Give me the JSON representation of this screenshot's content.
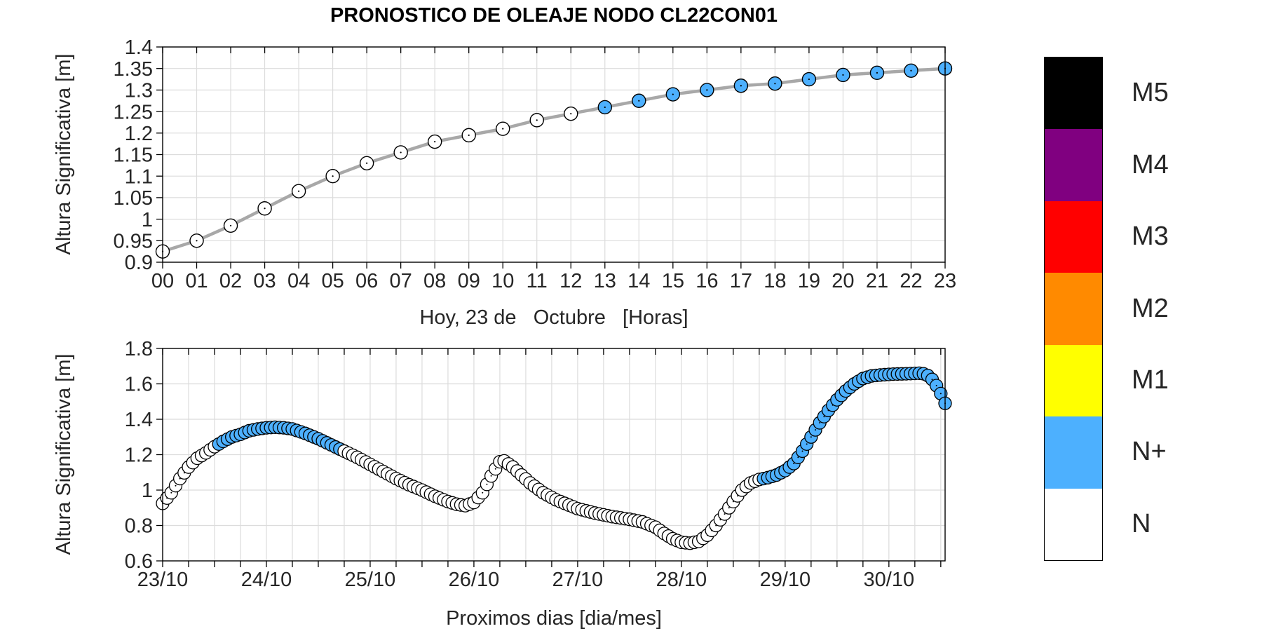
{
  "title": "PRONOSTICO DE OLEAJE NODO CL22CON01",
  "colors": {
    "n_plus_blue": "#4DB0FE",
    "n_white": "#FFFFFF",
    "marker_edge": "#000000",
    "series_line_gray": "#A8A8A8",
    "grid": "#DCDCDC",
    "axis_frame": "#000000",
    "tick_text": "#262626",
    "m5_black": "#000000",
    "m4_purple": "#800080",
    "m3_red": "#FF0000",
    "m2_orange": "#FF8A00",
    "m1_yellow": "#FFFF00"
  },
  "legend": {
    "items": [
      {
        "label": "M5",
        "color": "#000000"
      },
      {
        "label": "M4",
        "color": "#800080"
      },
      {
        "label": "M3",
        "color": "#FF0000"
      },
      {
        "label": "M2",
        "color": "#FF8A00"
      },
      {
        "label": "M1",
        "color": "#FFFF00"
      },
      {
        "label": "N+",
        "color": "#4DB0FE"
      },
      {
        "label": "N",
        "color": "#FFFFFF"
      }
    ]
  },
  "chart_data": [
    {
      "type": "line",
      "id": "today-hourly",
      "title": "PRONOSTICO DE OLEAJE NODO CL22CON01",
      "xlabel": "Hoy, 23 de   Octubre   [Horas]",
      "ylabel": "Altura Significativa [m]",
      "x_tick_labels": [
        "00",
        "01",
        "02",
        "03",
        "04",
        "05",
        "06",
        "07",
        "08",
        "09",
        "10",
        "11",
        "12",
        "13",
        "14",
        "15",
        "16",
        "17",
        "18",
        "19",
        "20",
        "21",
        "22",
        "23"
      ],
      "values": [
        0.925,
        0.95,
        0.985,
        1.025,
        1.065,
        1.1,
        1.13,
        1.155,
        1.18,
        1.195,
        1.21,
        1.23,
        1.245,
        1.26,
        1.275,
        1.29,
        1.3,
        1.31,
        1.315,
        1.325,
        1.335,
        1.34,
        1.345,
        1.35
      ],
      "point_levels": [
        "N",
        "N",
        "N",
        "N",
        "N",
        "N",
        "N",
        "N",
        "N",
        "N",
        "N",
        "N",
        "N",
        "N+",
        "N+",
        "N+",
        "N+",
        "N+",
        "N+",
        "N+",
        "N+",
        "N+",
        "N+",
        "N+"
      ],
      "blue_from_index": 13,
      "ylim": [
        0.9,
        1.4
      ],
      "ytick_step": 0.05,
      "y_tick_labels": [
        "0.9",
        "0.95",
        "1",
        "1.05",
        "1.1",
        "1.15",
        "1.2",
        "1.25",
        "1.3",
        "1.35",
        "1.4"
      ],
      "grid": true,
      "legend_position": "right-of-plot"
    },
    {
      "type": "scatter",
      "id": "coming-days",
      "xlabel": "Proximos dias [dia/mes]",
      "ylabel": "Altura Significativa [m]",
      "x_tick_labels": [
        "23/10",
        "24/10",
        "25/10",
        "26/10",
        "27/10",
        "28/10",
        "29/10",
        "30/10"
      ],
      "hours_per_day": 24,
      "t_start_hours": 0,
      "t_end_hours": 181,
      "minor_tick_hours": 6,
      "keypoints_hour_value": [
        [
          0,
          0.925
        ],
        [
          2,
          0.985
        ],
        [
          4,
          1.065
        ],
        [
          6,
          1.13
        ],
        [
          8,
          1.18
        ],
        [
          10,
          1.21
        ],
        [
          12,
          1.245
        ],
        [
          14,
          1.275
        ],
        [
          16,
          1.3
        ],
        [
          18,
          1.315
        ],
        [
          20,
          1.335
        ],
        [
          22,
          1.345
        ],
        [
          24,
          1.352
        ],
        [
          26,
          1.355
        ],
        [
          28,
          1.352
        ],
        [
          30,
          1.345
        ],
        [
          33,
          1.32
        ],
        [
          36,
          1.29
        ],
        [
          39,
          1.255
        ],
        [
          42,
          1.22
        ],
        [
          45,
          1.185
        ],
        [
          48,
          1.145
        ],
        [
          51,
          1.105
        ],
        [
          54,
          1.065
        ],
        [
          57,
          1.03
        ],
        [
          60,
          1.0
        ],
        [
          63,
          0.965
        ],
        [
          66,
          0.935
        ],
        [
          68,
          0.92
        ],
        [
          70,
          0.912
        ],
        [
          72,
          0.93
        ],
        [
          74,
          0.985
        ],
        [
          76,
          1.08
        ],
        [
          78,
          1.16
        ],
        [
          79,
          1.165
        ],
        [
          81,
          1.13
        ],
        [
          83,
          1.085
        ],
        [
          85,
          1.04
        ],
        [
          88,
          0.985
        ],
        [
          91,
          0.945
        ],
        [
          94,
          0.915
        ],
        [
          96,
          0.895
        ],
        [
          100,
          0.87
        ],
        [
          104,
          0.85
        ],
        [
          108,
          0.835
        ],
        [
          111,
          0.82
        ],
        [
          114,
          0.79
        ],
        [
          116,
          0.755
        ],
        [
          118,
          0.725
        ],
        [
          120,
          0.705
        ],
        [
          122,
          0.7
        ],
        [
          124,
          0.71
        ],
        [
          126,
          0.745
        ],
        [
          128,
          0.8
        ],
        [
          130,
          0.865
        ],
        [
          132,
          0.935
        ],
        [
          134,
          1.0
        ],
        [
          136,
          1.04
        ],
        [
          138,
          1.06
        ],
        [
          140,
          1.07
        ],
        [
          142,
          1.085
        ],
        [
          144,
          1.11
        ],
        [
          146,
          1.15
        ],
        [
          148,
          1.22
        ],
        [
          150,
          1.3
        ],
        [
          152,
          1.38
        ],
        [
          154,
          1.45
        ],
        [
          156,
          1.51
        ],
        [
          158,
          1.56
        ],
        [
          160,
          1.6
        ],
        [
          162,
          1.63
        ],
        [
          164,
          1.645
        ],
        [
          166,
          1.65
        ],
        [
          169,
          1.655
        ],
        [
          172,
          1.657
        ],
        [
          175,
          1.66
        ],
        [
          176,
          1.657
        ],
        [
          177,
          1.647
        ],
        [
          178,
          1.625
        ],
        [
          179,
          1.59
        ],
        [
          180,
          1.545
        ],
        [
          181,
          1.49
        ]
      ],
      "blue_hour_ranges": [
        [
          13,
          41
        ],
        [
          139,
          181
        ]
      ],
      "ylim": [
        0.6,
        1.8
      ],
      "ytick_step": 0.2,
      "y_tick_labels": [
        "0.6",
        "0.8",
        "1",
        "1.2",
        "1.4",
        "1.6",
        "1.8"
      ],
      "grid": true
    }
  ]
}
